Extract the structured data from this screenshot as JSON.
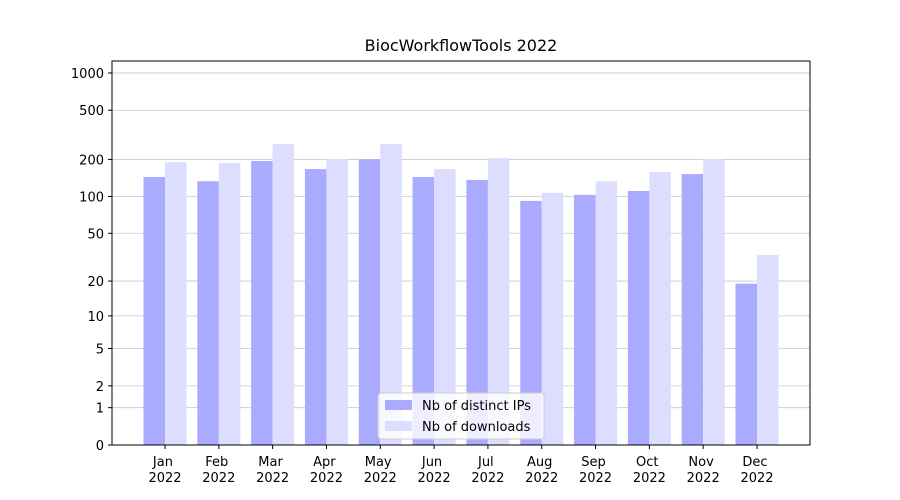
{
  "chart_data": {
    "type": "bar",
    "title": "BiocWorkflowTools 2022",
    "categories": [
      "Jan 2022",
      "Feb 2022",
      "Mar 2022",
      "Apr 2022",
      "May 2022",
      "Jun 2022",
      "Jul 2022",
      "Aug 2022",
      "Sep 2022",
      "Oct 2022",
      "Nov 2022",
      "Dec 2022"
    ],
    "series": [
      {
        "name": "Nb of distinct IPs",
        "color": "#aaaaff",
        "values": [
          144,
          133,
          194,
          167,
          200,
          144,
          136,
          92,
          103,
          111,
          152,
          19
        ]
      },
      {
        "name": "Nb of downloads",
        "color": "#ddddff",
        "values": [
          190,
          187,
          266,
          201,
          266,
          167,
          205,
          107,
          133,
          158,
          201,
          33
        ]
      }
    ],
    "yscale": "symlog",
    "ylim": [
      0,
      1249
    ],
    "yticks": [
      0,
      1,
      2,
      5,
      10,
      20,
      50,
      100,
      200,
      500,
      1000
    ],
    "grid": true,
    "legend": "lower center"
  }
}
